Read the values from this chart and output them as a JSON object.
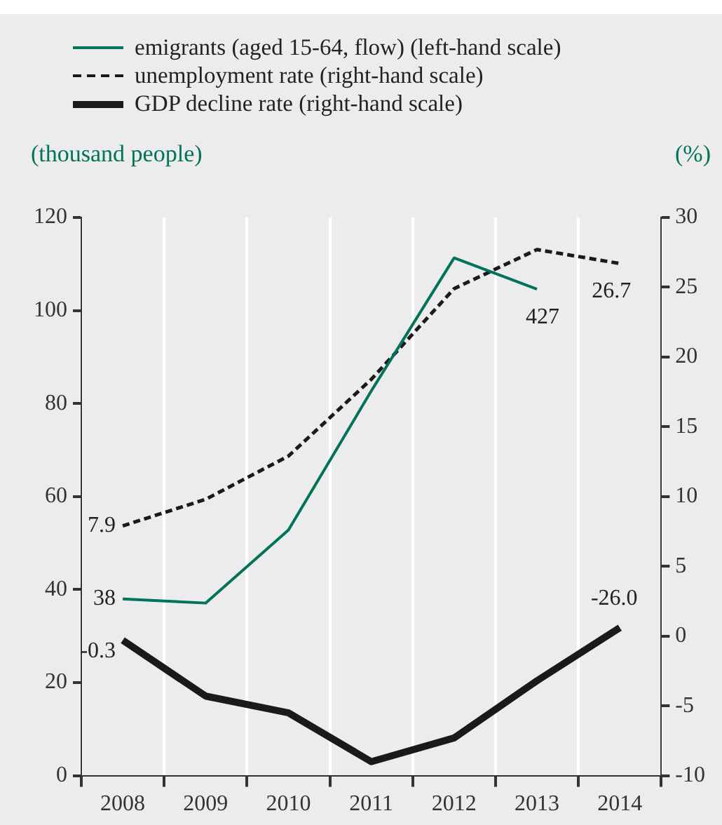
{
  "chart_data": {
    "type": "line",
    "categories": [
      "2008",
      "2009",
      "2010",
      "2011",
      "2012",
      "2013",
      "2014"
    ],
    "ylabel": "(thousand people)",
    "y2label": "(%)",
    "ylim": [
      0,
      120
    ],
    "yticks": [
      0,
      20,
      40,
      60,
      80,
      100,
      120
    ],
    "y2lim": [
      -10,
      30
    ],
    "y2ticks": [
      -10,
      -5,
      0,
      5,
      10,
      15,
      20,
      25,
      30
    ],
    "grid": "x",
    "legend": "top",
    "series": [
      {
        "name": "emigrants (aged 15-64, flow) (left-hand scale)",
        "color": "#00735a",
        "line_style": "solid",
        "values": [
          38,
          37.1,
          52.8,
          82.7,
          111.3,
          104.6,
          null
        ],
        "value_labels": [
          "38",
          null,
          null,
          null,
          null,
          null,
          null
        ]
      },
      {
        "name": "unemployment rate (right-hand scale)",
        "color": "#1a1a1a",
        "axis": "y2",
        "line_style": "dashed",
        "values": [
          7.9,
          9.8,
          12.9,
          18.4,
          24.9,
          27.7,
          26.7
        ],
        "value_labels": [
          "7.9",
          null,
          null,
          null,
          null,
          null,
          "26.7"
        ]
      },
      {
        "name": "GDP decline rate (right-hand scale)",
        "color": "#1a1a1a",
        "axis": "y2",
        "line_style": "solid",
        "values": [
          -0.3,
          -4.3,
          -5.5,
          -9.0,
          -7.3,
          -3.2,
          0.6
        ],
        "value_labels": [
          "-0.3",
          null,
          null,
          null,
          null,
          null,
          null
        ]
      }
    ],
    "annotations": [
      {
        "text": "427",
        "x": "2013",
        "y": 104.6
      },
      {
        "text": "-26.0",
        "x": "2014",
        "y": 32
      }
    ]
  }
}
